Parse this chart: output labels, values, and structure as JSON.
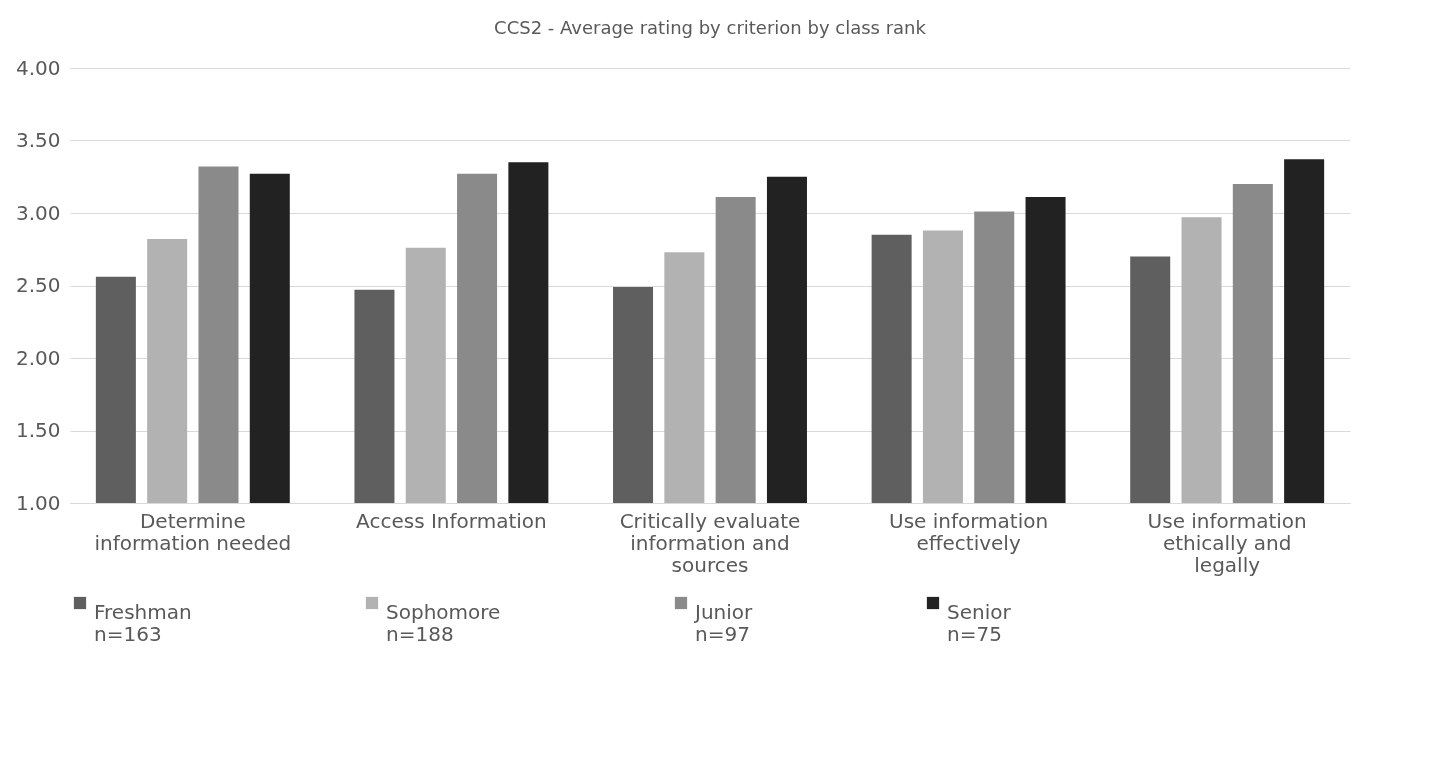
{
  "chart_data": {
    "type": "bar",
    "title": "CCS2 - Average rating by criterion by class rank",
    "categories": [
      "Determine information needed",
      "Access Information",
      "Critically evaluate information and sources",
      "Use information effectively",
      "Use information ethically and legally"
    ],
    "series": [
      {
        "name": "Freshman n=163",
        "color": "#5f5f5f",
        "values": [
          2.56,
          2.47,
          2.49,
          2.85,
          2.7
        ]
      },
      {
        "name": "Sophomore n=188",
        "color": "#b2b2b2",
        "values": [
          2.82,
          2.76,
          2.73,
          2.88,
          2.97
        ]
      },
      {
        "name": "Junior n=97",
        "color": "#8a8a8a",
        "values": [
          3.32,
          3.27,
          3.11,
          3.01,
          3.2
        ]
      },
      {
        "name": "Senior n=75",
        "color": "#222222",
        "values": [
          3.27,
          3.35,
          3.25,
          3.11,
          3.37
        ]
      }
    ],
    "ylim": [
      1.0,
      4.0
    ],
    "yticks": [
      {
        "value": 1.0,
        "label": "1.00"
      },
      {
        "value": 1.5,
        "label": "1.50"
      },
      {
        "value": 2.0,
        "label": "2.00"
      },
      {
        "value": 2.5,
        "label": "2.50"
      },
      {
        "value": 3.0,
        "label": "3.00"
      },
      {
        "value": 3.5,
        "label": "3.50"
      },
      {
        "value": 4.0,
        "label": "4.00"
      }
    ],
    "grid": "y",
    "legend": "bottom"
  }
}
